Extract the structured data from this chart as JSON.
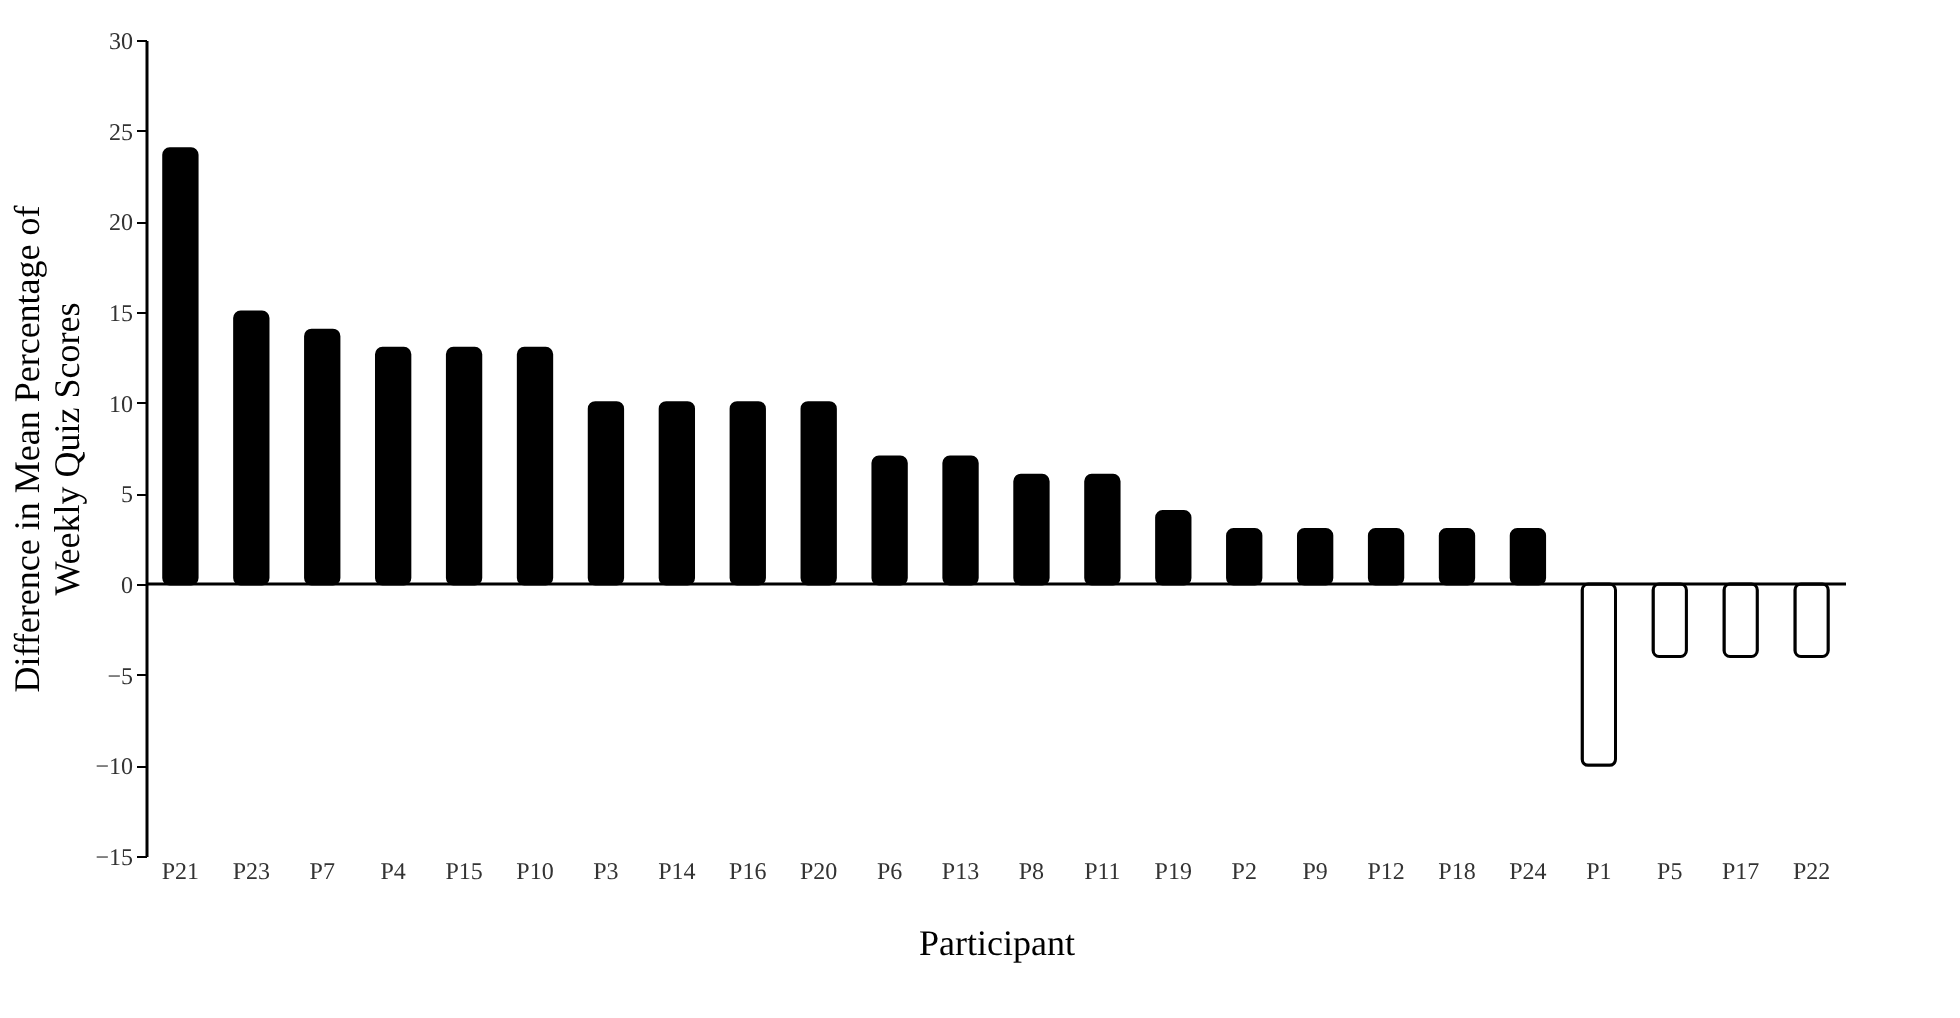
{
  "chart_data": {
    "type": "bar",
    "xlabel": "Participant",
    "ylabel": "Difference in Mean Percentage of\nWeekly Quiz Scores",
    "categories": [
      "P21",
      "P23",
      "P7",
      "P4",
      "P15",
      "P10",
      "P3",
      "P14",
      "P16",
      "P20",
      "P6",
      "P13",
      "P8",
      "P11",
      "P19",
      "P2",
      "P9",
      "P12",
      "P18",
      "P24",
      "P1",
      "P5",
      "P17",
      "P22"
    ],
    "values": [
      24,
      15,
      14,
      13,
      13,
      13,
      10,
      10,
      10,
      10,
      7,
      7,
      6,
      6,
      4,
      3,
      3,
      3,
      3,
      3,
      -10,
      -4,
      -4,
      -4
    ],
    "colors": [
      "#000000",
      "#000000",
      "#000000",
      "#000000",
      "#000000",
      "#000000",
      "#000000",
      "#000000",
      "#000000",
      "#000000",
      "#000000",
      "#000000",
      "#000000",
      "#000000",
      "#000000",
      "#000000",
      "#000000",
      "#000000",
      "#000000",
      "#000000",
      "#ffffff",
      "#ffffff",
      "#ffffff",
      "#ffffff"
    ],
    "ylim": [
      -15,
      30
    ],
    "yticks": [
      -15,
      -10,
      -5,
      0,
      5,
      10,
      15,
      20,
      25,
      30
    ]
  }
}
